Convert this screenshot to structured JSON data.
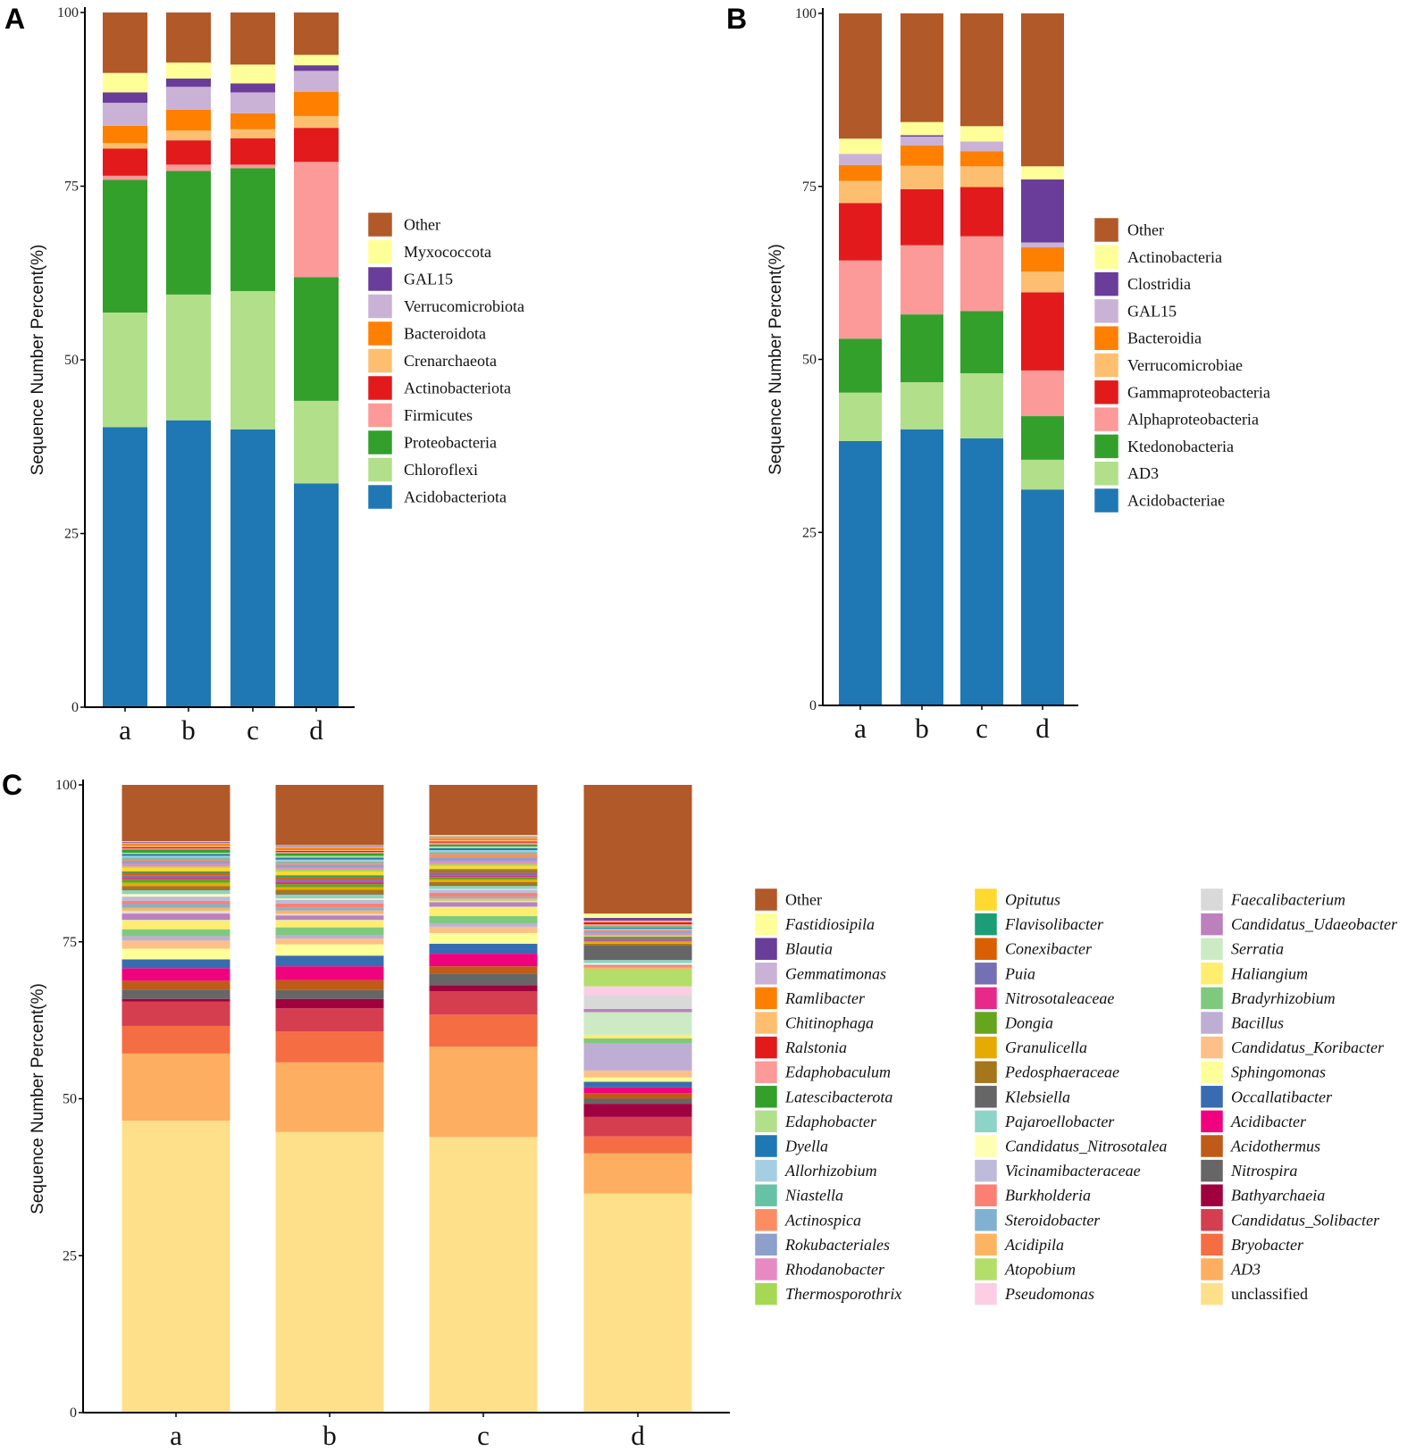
{
  "chart_data": [
    {
      "panel": "A",
      "type": "bar",
      "stacked": true,
      "title": "",
      "xlabel": "",
      "ylabel": "Sequence Number Percent(%)",
      "ylim": [
        0,
        100
      ],
      "yticks": [
        0,
        25,
        50,
        75,
        100
      ],
      "categories": [
        "a",
        "b",
        "c",
        "d"
      ],
      "legend_position": "right",
      "series": [
        {
          "name": "Other",
          "color": "#B15928",
          "values": [
            8.7,
            7.2,
            7.5,
            6.1
          ]
        },
        {
          "name": "Myxococcota",
          "color": "#FFFF99",
          "values": [
            2.8,
            2.3,
            2.7,
            1.5
          ]
        },
        {
          "name": "GAL15",
          "color": "#6A3D9A",
          "values": [
            1.5,
            1.2,
            1.3,
            0.8
          ]
        },
        {
          "name": "Verrucomicrobiota",
          "color": "#CAB2D6",
          "values": [
            3.3,
            3.3,
            3.0,
            3.0
          ]
        },
        {
          "name": "Bacteroidota",
          "color": "#FF7F00",
          "values": [
            2.5,
            3.0,
            2.3,
            3.5
          ]
        },
        {
          "name": "Crenarchaeota",
          "color": "#FDBF6F",
          "values": [
            0.8,
            1.4,
            1.3,
            1.7
          ]
        },
        {
          "name": "Actinobacteriota",
          "color": "#E31A1C",
          "values": [
            3.9,
            3.5,
            3.8,
            4.9
          ]
        },
        {
          "name": "Firmicutes",
          "color": "#FB9A99",
          "values": [
            0.6,
            0.9,
            0.5,
            16.6
          ]
        },
        {
          "name": "Proteobacteria",
          "color": "#33A02C",
          "values": [
            19.1,
            17.8,
            17.7,
            17.8
          ]
        },
        {
          "name": "Chloroflexi",
          "color": "#B2DF8A",
          "values": [
            16.5,
            18.1,
            19.9,
            11.9
          ]
        },
        {
          "name": "Acidobacteriota",
          "color": "#1F78B4",
          "values": [
            40.3,
            41.3,
            40.0,
            32.2
          ]
        }
      ]
    },
    {
      "panel": "B",
      "type": "bar",
      "stacked": true,
      "title": "",
      "xlabel": "",
      "ylabel": "Sequence Number Percent(%)",
      "ylim": [
        0,
        100
      ],
      "yticks": [
        0,
        25,
        50,
        75,
        100
      ],
      "categories": [
        "a",
        "b",
        "c",
        "d"
      ],
      "legend_position": "right",
      "series": [
        {
          "name": "Other",
          "color": "#B15928",
          "values": [
            18.1,
            15.7,
            16.3,
            22.1
          ]
        },
        {
          "name": "Actinobacteria",
          "color": "#FFFF99",
          "values": [
            2.2,
            1.9,
            2.2,
            1.9
          ]
        },
        {
          "name": "Clostridia",
          "color": "#6A3D9A",
          "values": [
            0.0,
            0.2,
            0.0,
            9.1
          ]
        },
        {
          "name": "GAL15",
          "color": "#CAB2D6",
          "values": [
            1.6,
            1.3,
            1.4,
            0.7
          ]
        },
        {
          "name": "Bacteroidia",
          "color": "#FF7F00",
          "values": [
            2.3,
            2.9,
            2.2,
            3.5
          ]
        },
        {
          "name": "Verrucomicrobiae",
          "color": "#FDBF6F",
          "values": [
            3.2,
            3.4,
            3.0,
            3.0
          ]
        },
        {
          "name": "Gammaproteobacteria",
          "color": "#E31A1C",
          "values": [
            8.3,
            8.1,
            7.1,
            11.3
          ]
        },
        {
          "name": "Alphaproteobacteria",
          "color": "#FB9A99",
          "values": [
            11.3,
            10.0,
            10.8,
            6.6
          ]
        },
        {
          "name": "Ktedonobacteria",
          "color": "#33A02C",
          "values": [
            7.8,
            9.8,
            9.0,
            6.3
          ]
        },
        {
          "name": "AD3",
          "color": "#B2DF8A",
          "values": [
            7.0,
            6.8,
            9.4,
            4.3
          ]
        },
        {
          "name": "Acidobacteriae",
          "color": "#1F78B4",
          "values": [
            38.2,
            39.9,
            38.6,
            31.2
          ]
        }
      ]
    },
    {
      "panel": "C",
      "type": "bar",
      "stacked": true,
      "title": "",
      "xlabel": "",
      "ylabel": "Sequence Number Percent(%)",
      "ylim": [
        0,
        100
      ],
      "yticks": [
        0,
        25,
        50,
        75,
        100
      ],
      "categories": [
        "a",
        "b",
        "c",
        "d"
      ],
      "legend_position": "right",
      "series": [
        {
          "name": "Other",
          "color": "#B15928",
          "values": [
            9.0,
            9.6,
            8.0,
            20.5
          ]
        },
        {
          "name": "Fastidiosipila",
          "color": "#FFFF99",
          "values": [
            0.1,
            0.1,
            0.2,
            0.7
          ]
        },
        {
          "name": "Blautia",
          "color": "#6A3D9A",
          "values": [
            0.1,
            0.1,
            0.1,
            0.4
          ]
        },
        {
          "name": "Gemmatimonas",
          "color": "#CAB2D6",
          "values": [
            0.2,
            0.2,
            0.2,
            0.1
          ]
        },
        {
          "name": "Ramlibacter",
          "color": "#FF7F00",
          "values": [
            0.3,
            0.4,
            0.3,
            0.1
          ]
        },
        {
          "name": "Chitinophaga",
          "color": "#FDBF6F",
          "values": [
            0.2,
            0.1,
            0.2,
            0.1
          ]
        },
        {
          "name": "Ralstonia",
          "color": "#E31A1C",
          "values": [
            0.2,
            0.2,
            0.2,
            0.3
          ]
        },
        {
          "name": "Edaphobaculum",
          "color": "#FB9A99",
          "values": [
            0.2,
            0.2,
            0.3,
            0.3
          ]
        },
        {
          "name": "Latescibacterota",
          "color": "#33A02C",
          "values": [
            0.5,
            0.4,
            0.3,
            0.1
          ]
        },
        {
          "name": "Edaphobacter",
          "color": "#B2DF8A",
          "values": [
            0.2,
            0.3,
            0.3,
            0.1
          ]
        },
        {
          "name": "Dyella",
          "color": "#1F78B4",
          "values": [
            0.3,
            0.3,
            0.3,
            0.2
          ]
        },
        {
          "name": "Allorhizobium",
          "color": "#A6CEE3",
          "values": [
            0.3,
            0.3,
            0.3,
            0.1
          ]
        },
        {
          "name": "Niastella",
          "color": "#66C2A5",
          "values": [
            0.2,
            0.2,
            0.3,
            0.1
          ]
        },
        {
          "name": "Actinospica",
          "color": "#FC8D62",
          "values": [
            0.3,
            0.3,
            0.6,
            0.2
          ]
        },
        {
          "name": "Rokubacteriales",
          "color": "#8DA0CB",
          "values": [
            0.5,
            0.5,
            0.6,
            0.3
          ]
        },
        {
          "name": "Rhodanobacter",
          "color": "#E78AC3",
          "values": [
            0.4,
            0.3,
            0.4,
            0.3
          ]
        },
        {
          "name": "Thermosporothrix",
          "color": "#A6D854",
          "values": [
            0.2,
            0.3,
            0.3,
            0.2
          ]
        },
        {
          "name": "Opitutus",
          "color": "#FFD92F",
          "values": [
            0.6,
            0.6,
            0.5,
            0.1
          ]
        },
        {
          "name": "Flavisolibacter",
          "color": "#1B9E77",
          "values": [
            0.2,
            0.3,
            0.2,
            0.2
          ]
        },
        {
          "name": "Conexibacter",
          "color": "#D95F02",
          "values": [
            0.4,
            0.4,
            0.4,
            0.1
          ]
        },
        {
          "name": "Puia",
          "color": "#7570B3",
          "values": [
            0.3,
            0.3,
            0.4,
            0.3
          ]
        },
        {
          "name": "Nitrosotaleaceae",
          "color": "#E7298A",
          "values": [
            0.3,
            0.4,
            0.3,
            0.1
          ]
        },
        {
          "name": "Dongia",
          "color": "#66A61E",
          "values": [
            0.6,
            0.5,
            0.4,
            0.1
          ]
        },
        {
          "name": "Granulicella",
          "color": "#E6AB02",
          "values": [
            0.5,
            0.4,
            0.4,
            0.3
          ]
        },
        {
          "name": "Pedosphaeraceae",
          "color": "#A6761D",
          "values": [
            0.6,
            0.7,
            0.5,
            0.3
          ]
        },
        {
          "name": "Klebsiella",
          "color": "#666666",
          "values": [
            0.1,
            0.1,
            0.1,
            2.3
          ]
        },
        {
          "name": "Pajaroellobacter",
          "color": "#8DD3C7",
          "values": [
            0.6,
            0.6,
            0.5,
            0.5
          ]
        },
        {
          "name": "Candidatus_Nitrosotalea",
          "color": "#FFFFB3",
          "values": [
            0.4,
            0.2,
            0.1,
            0.2
          ]
        },
        {
          "name": "Vicinamibacteraceae",
          "color": "#BEBADA",
          "values": [
            0.7,
            0.6,
            0.5,
            0.1
          ]
        },
        {
          "name": "Burkholderia",
          "color": "#FB8072",
          "values": [
            0.5,
            0.7,
            0.6,
            0.3
          ]
        },
        {
          "name": "Steroidobacter",
          "color": "#80B1D3",
          "values": [
            0.6,
            0.4,
            0.3,
            0.1
          ]
        },
        {
          "name": "Acidipila",
          "color": "#FDB462",
          "values": [
            0.4,
            0.5,
            0.3,
            0.2
          ]
        },
        {
          "name": "Atopobium",
          "color": "#B3DE69",
          "values": [
            0.1,
            0.1,
            0.1,
            2.8
          ]
        },
        {
          "name": "Pseudomonas",
          "color": "#FCCDE5",
          "values": [
            0.2,
            0.1,
            0.1,
            1.4
          ]
        },
        {
          "name": "Faecalibacterium",
          "color": "#D9D9D9",
          "values": [
            0.2,
            0.1,
            0.1,
            2.2
          ]
        },
        {
          "name": "Candidatus_Udaeobacter",
          "color": "#BC80BD",
          "values": [
            1.0,
            0.7,
            0.7,
            0.5
          ]
        },
        {
          "name": "Serratia",
          "color": "#CCEBC5",
          "values": [
            0.1,
            0.1,
            0.1,
            3.6
          ]
        },
        {
          "name": "Haliangium",
          "color": "#FFED6F",
          "values": [
            1.4,
            1.1,
            1.4,
            0.6
          ]
        },
        {
          "name": "Bradyrhizobium",
          "color": "#7FC97F",
          "values": [
            1.1,
            1.2,
            1.2,
            0.8
          ]
        },
        {
          "name": "Bacillus",
          "color": "#BEAED4",
          "values": [
            0.7,
            0.6,
            0.5,
            4.3
          ]
        },
        {
          "name": "Candidatus_Koribacter",
          "color": "#FDC086",
          "values": [
            1.3,
            0.9,
            1.0,
            1.1
          ]
        },
        {
          "name": "Sphingomonas",
          "color": "#FFFF99",
          "values": [
            1.7,
            1.8,
            1.7,
            0.7
          ]
        },
        {
          "name": "Occallatibacter",
          "color": "#386CB0",
          "values": [
            1.4,
            1.7,
            1.6,
            0.9
          ]
        },
        {
          "name": "Acidibacter",
          "color": "#F0027F",
          "values": [
            2.0,
            2.2,
            2.0,
            0.9
          ]
        },
        {
          "name": "Acidothermus",
          "color": "#BF5B17",
          "values": [
            1.4,
            1.6,
            1.2,
            0.9
          ]
        },
        {
          "name": "Nitrospira",
          "color": "#666666",
          "values": [
            1.5,
            1.4,
            1.8,
            0.8
          ]
        },
        {
          "name": "Bathyarchaeia",
          "color": "#A0003F",
          "values": [
            0.4,
            1.5,
            1.0,
            2.1
          ]
        },
        {
          "name": "Candidatus_Solibacter",
          "color": "#D53E4F",
          "values": [
            3.9,
            3.7,
            3.7,
            3.1
          ]
        },
        {
          "name": "Bryobacter",
          "color": "#F46D43",
          "values": [
            4.4,
            4.9,
            5.1,
            2.7
          ]
        },
        {
          "name": "AD3",
          "color": "#FDAE61",
          "values": [
            10.7,
            11.1,
            14.4,
            6.4
          ]
        },
        {
          "name": "unclassified",
          "color": "#FEE08B",
          "values": [
            46.5,
            44.7,
            43.9,
            34.9
          ]
        }
      ]
    }
  ]
}
